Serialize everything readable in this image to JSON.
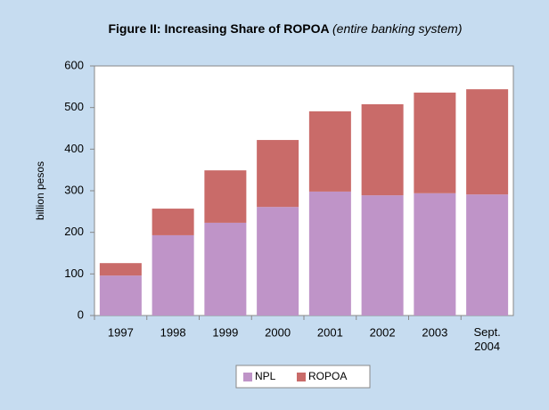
{
  "chart_data": {
    "type": "stacked-bar",
    "title": "Figure II: Increasing Share of ROPOA",
    "subtitle": "(entire banking system)",
    "y_label": "billion pesos",
    "categories": [
      "1997",
      "1998",
      "1999",
      "2000",
      "2001",
      "2002",
      "2003",
      "Sept. 2004"
    ],
    "series": [
      {
        "name": "NPL",
        "color": "#bf94c8",
        "values": [
          96,
          193,
          223,
          261,
          298,
          289,
          294,
          291
        ]
      },
      {
        "name": "ROPOA",
        "color": "#c96b69",
        "values": [
          30,
          64,
          126,
          161,
          193,
          219,
          242,
          253
        ]
      }
    ],
    "ylim": [
      0,
      600
    ],
    "yticks": [
      0,
      100,
      200,
      300,
      400,
      500,
      600
    ],
    "grid": false,
    "legend": "bottom"
  }
}
